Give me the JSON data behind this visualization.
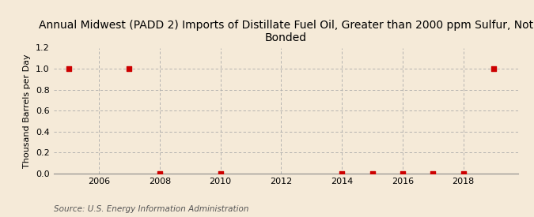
{
  "title": "Annual Midwest (PADD 2) Imports of Distillate Fuel Oil, Greater than 2000 ppm Sulfur, Not\nBonded",
  "ylabel": "Thousand Barrels per Day",
  "source": "Source: U.S. Energy Information Administration",
  "background_color": "#f5ead8",
  "plot_background_color": "#f5ead8",
  "xlim": [
    2004.5,
    2019.8
  ],
  "ylim": [
    0.0,
    1.2
  ],
  "yticks": [
    0.0,
    0.2,
    0.4,
    0.6,
    0.8,
    1.0,
    1.2
  ],
  "xticks": [
    2006,
    2008,
    2010,
    2012,
    2014,
    2016,
    2018
  ],
  "marker_color": "#cc0000",
  "marker_size": 4,
  "data_x": [
    2005,
    2007,
    2008,
    2010,
    2014,
    2015,
    2016,
    2017,
    2018,
    2019
  ],
  "data_y": [
    1.0,
    1.0,
    0.0,
    0.0,
    0.0,
    0.0,
    0.0,
    0.0,
    0.0,
    1.0
  ],
  "grid_color": "#aaaaaa",
  "grid_linestyle": "--",
  "title_fontsize": 10,
  "axis_fontsize": 8,
  "tick_fontsize": 8,
  "source_fontsize": 7.5
}
